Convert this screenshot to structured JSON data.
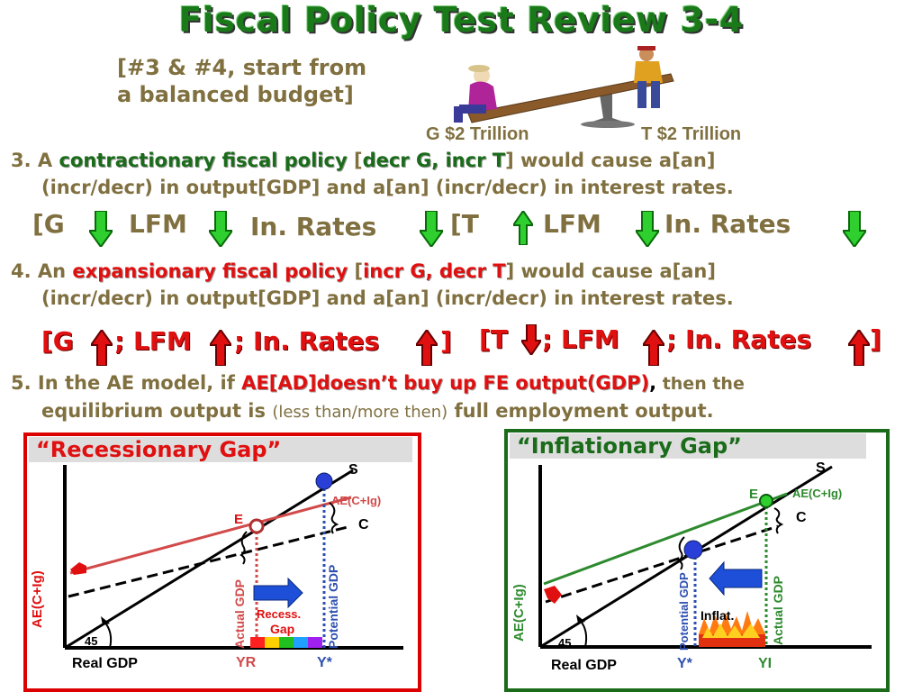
{
  "title": "Fiscal Policy Test Review 3-4",
  "note": {
    "line1": "[#3 & #4, start from",
    "line2": "a balanced budget]"
  },
  "seesaw": {
    "left_label": "G $2 Trillion",
    "right_label": "T $2 Trillion"
  },
  "q3": {
    "prefix": "3. A ",
    "keyword": "contractionary fiscal policy",
    "bracket_open": " [",
    "bracket_kw": "decr G, incr T",
    "rest1": "] would cause a[an]",
    "line2": "(incr/decr) in output[GDP] and a[an] (incr/decr) in interest rates."
  },
  "q3_answer": {
    "g": "[G",
    "lfm1": "LFM",
    "rates1": "In. Rates",
    "t": "[T",
    "lfm2": "LFM",
    "rates2": "In. Rates"
  },
  "q4": {
    "prefix": "4. An ",
    "keyword": "expansionary fiscal policy",
    "bracket_open": " [",
    "bracket_kw": "incr G, decr T",
    "rest1": "] would cause a[an]",
    "line2": "(incr/decr) in output[GDP] and a[an] (incr/decr) in interest rates."
  },
  "q4_answer": {
    "g": "[G",
    "lfm1": "; LFM",
    "rates1": "; In. Rates",
    "close1": "]",
    "t": "[T",
    "lfm2": "; LFM",
    "rates2": "; In. Rates",
    "close2": "]"
  },
  "q5": {
    "prefix": "5. In the AE model, if ",
    "keyword": "AE[AD]doesn’t buy up FE output(GDP)",
    "comma": ",",
    "then": " then the",
    "line2a": "equilibrium output is ",
    "line2b": "(less than/more then)",
    "line2c": " full employment output."
  },
  "recession": {
    "title": "“Recessionary Gap”",
    "s": "S",
    "ae": "AE(C+Ig)",
    "c": "C",
    "e": "E",
    "yaxis": "AE(C+Ig)",
    "actual": "Actual GDP",
    "potential": "Potential GDP",
    "gap1": "Recess.",
    "gap2": "Gap",
    "angle": "45",
    "xaxis": "Real GDP",
    "yr": "YR",
    "ystar": "Y*"
  },
  "inflation": {
    "title": "“Inflationary Gap”",
    "s": "S",
    "ae": "AE(C+Ig)",
    "c": "C",
    "e": "E",
    "yaxis": "AE(C+Ig)",
    "actual": "Actual GDP",
    "potential": "Potential GDP",
    "gap1": "Inflat.",
    "angle": "45",
    "xaxis": "Real GDP",
    "ystar": "Y*",
    "yi": "YI"
  },
  "colors": {
    "olive": "#807040",
    "green": "#1a6b1a",
    "red": "#e01010",
    "blue": "#1e4fd8"
  }
}
